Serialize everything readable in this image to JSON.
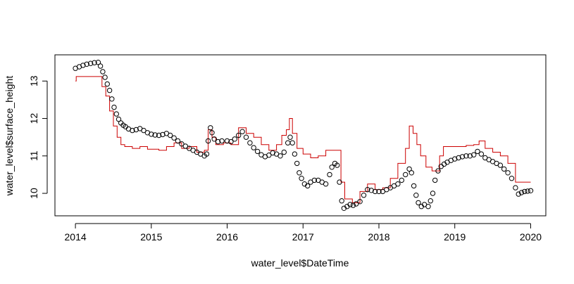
{
  "chart_data": {
    "type": "scatter",
    "title": "",
    "xlabel": "water_level$DateTime",
    "ylabel": "water_level$surface_height",
    "xlim": [
      2013.73,
      2020.2
    ],
    "ylim": [
      9.4,
      13.7
    ],
    "x_ticks": [
      2014,
      2015,
      2016,
      2017,
      2018,
      2019,
      2020
    ],
    "y_ticks": [
      10,
      11,
      12,
      13
    ],
    "grid": false,
    "legend": "none",
    "colors": {
      "points": "#000000",
      "line": "#cc0000",
      "axis": "#000000"
    },
    "series": [
      {
        "type": "scatter",
        "marker": "open-circle",
        "points": [
          [
            2014.0,
            13.34
          ],
          [
            2014.05,
            13.38
          ],
          [
            2014.1,
            13.42
          ],
          [
            2014.15,
            13.45
          ],
          [
            2014.2,
            13.47
          ],
          [
            2014.25,
            13.49
          ],
          [
            2014.3,
            13.5
          ],
          [
            2014.33,
            13.4
          ],
          [
            2014.36,
            13.25
          ],
          [
            2014.39,
            13.1
          ],
          [
            2014.42,
            12.92
          ],
          [
            2014.45,
            12.75
          ],
          [
            2014.48,
            12.52
          ],
          [
            2014.51,
            12.3
          ],
          [
            2014.54,
            12.12
          ],
          [
            2014.57,
            11.98
          ],
          [
            2014.6,
            11.88
          ],
          [
            2014.63,
            11.82
          ],
          [
            2014.66,
            11.78
          ],
          [
            2014.7,
            11.72
          ],
          [
            2014.75,
            11.68
          ],
          [
            2014.8,
            11.7
          ],
          [
            2014.85,
            11.73
          ],
          [
            2014.9,
            11.68
          ],
          [
            2014.95,
            11.62
          ],
          [
            2015.0,
            11.58
          ],
          [
            2015.05,
            11.56
          ],
          [
            2015.1,
            11.55
          ],
          [
            2015.15,
            11.57
          ],
          [
            2015.2,
            11.6
          ],
          [
            2015.25,
            11.55
          ],
          [
            2015.3,
            11.48
          ],
          [
            2015.35,
            11.4
          ],
          [
            2015.4,
            11.32
          ],
          [
            2015.45,
            11.26
          ],
          [
            2015.5,
            11.2
          ],
          [
            2015.55,
            11.15
          ],
          [
            2015.6,
            11.1
          ],
          [
            2015.65,
            11.05
          ],
          [
            2015.7,
            11.0
          ],
          [
            2015.73,
            11.05
          ],
          [
            2015.75,
            11.4
          ],
          [
            2015.78,
            11.75
          ],
          [
            2015.8,
            11.62
          ],
          [
            2015.83,
            11.45
          ],
          [
            2015.88,
            11.38
          ],
          [
            2015.93,
            11.4
          ],
          [
            2016.0,
            11.4
          ],
          [
            2016.05,
            11.38
          ],
          [
            2016.1,
            11.45
          ],
          [
            2016.15,
            11.55
          ],
          [
            2016.2,
            11.65
          ],
          [
            2016.25,
            11.5
          ],
          [
            2016.3,
            11.35
          ],
          [
            2016.35,
            11.22
          ],
          [
            2016.4,
            11.12
          ],
          [
            2016.45,
            11.03
          ],
          [
            2016.5,
            10.98
          ],
          [
            2016.55,
            11.02
          ],
          [
            2016.6,
            11.08
          ],
          [
            2016.65,
            11.05
          ],
          [
            2016.7,
            11.0
          ],
          [
            2016.75,
            11.1
          ],
          [
            2016.8,
            11.35
          ],
          [
            2016.83,
            11.5
          ],
          [
            2016.86,
            11.35
          ],
          [
            2016.89,
            11.05
          ],
          [
            2016.92,
            10.8
          ],
          [
            2016.95,
            10.55
          ],
          [
            2016.98,
            10.4
          ],
          [
            2017.02,
            10.25
          ],
          [
            2017.06,
            10.2
          ],
          [
            2017.1,
            10.3
          ],
          [
            2017.15,
            10.35
          ],
          [
            2017.2,
            10.35
          ],
          [
            2017.25,
            10.3
          ],
          [
            2017.3,
            10.25
          ],
          [
            2017.35,
            10.5
          ],
          [
            2017.38,
            10.7
          ],
          [
            2017.42,
            10.8
          ],
          [
            2017.45,
            10.75
          ],
          [
            2017.48,
            10.3
          ],
          [
            2017.51,
            9.8
          ],
          [
            2017.54,
            9.6
          ],
          [
            2017.58,
            9.65
          ],
          [
            2017.62,
            9.7
          ],
          [
            2017.66,
            9.68
          ],
          [
            2017.7,
            9.72
          ],
          [
            2017.75,
            9.78
          ],
          [
            2017.8,
            9.95
          ],
          [
            2017.85,
            10.1
          ],
          [
            2017.9,
            10.08
          ],
          [
            2017.95,
            10.05
          ],
          [
            2018.0,
            10.05
          ],
          [
            2018.05,
            10.05
          ],
          [
            2018.1,
            10.1
          ],
          [
            2018.15,
            10.15
          ],
          [
            2018.2,
            10.2
          ],
          [
            2018.25,
            10.25
          ],
          [
            2018.3,
            10.35
          ],
          [
            2018.35,
            10.5
          ],
          [
            2018.4,
            10.65
          ],
          [
            2018.43,
            10.55
          ],
          [
            2018.46,
            10.2
          ],
          [
            2018.49,
            9.95
          ],
          [
            2018.52,
            9.75
          ],
          [
            2018.56,
            9.65
          ],
          [
            2018.6,
            9.7
          ],
          [
            2018.65,
            9.65
          ],
          [
            2018.68,
            9.8
          ],
          [
            2018.71,
            10.0
          ],
          [
            2018.74,
            10.35
          ],
          [
            2018.78,
            10.6
          ],
          [
            2018.82,
            10.72
          ],
          [
            2018.86,
            10.78
          ],
          [
            2018.9,
            10.83
          ],
          [
            2018.95,
            10.88
          ],
          [
            2019.0,
            10.92
          ],
          [
            2019.05,
            10.95
          ],
          [
            2019.1,
            10.98
          ],
          [
            2019.15,
            11.0
          ],
          [
            2019.2,
            11.0
          ],
          [
            2019.25,
            11.03
          ],
          [
            2019.3,
            11.12
          ],
          [
            2019.35,
            11.05
          ],
          [
            2019.4,
            10.95
          ],
          [
            2019.45,
            10.9
          ],
          [
            2019.5,
            10.85
          ],
          [
            2019.55,
            10.8
          ],
          [
            2019.6,
            10.75
          ],
          [
            2019.65,
            10.65
          ],
          [
            2019.7,
            10.55
          ],
          [
            2019.75,
            10.4
          ],
          [
            2019.8,
            10.15
          ],
          [
            2019.84,
            9.98
          ],
          [
            2019.88,
            10.02
          ],
          [
            2019.92,
            10.05
          ],
          [
            2019.96,
            10.06
          ],
          [
            2020.0,
            10.07
          ]
        ]
      },
      {
        "type": "step-line",
        "points": [
          [
            2014.0,
            13.0
          ],
          [
            2014.01,
            13.12
          ],
          [
            2014.3,
            13.12
          ],
          [
            2014.35,
            12.85
          ],
          [
            2014.4,
            12.6
          ],
          [
            2014.45,
            12.2
          ],
          [
            2014.5,
            11.8
          ],
          [
            2014.55,
            11.5
          ],
          [
            2014.6,
            11.3
          ],
          [
            2014.65,
            11.25
          ],
          [
            2014.75,
            11.2
          ],
          [
            2014.85,
            11.25
          ],
          [
            2014.95,
            11.18
          ],
          [
            2015.1,
            11.15
          ],
          [
            2015.2,
            11.25
          ],
          [
            2015.3,
            11.35
          ],
          [
            2015.4,
            11.2
          ],
          [
            2015.5,
            11.25
          ],
          [
            2015.6,
            11.1
          ],
          [
            2015.7,
            11.15
          ],
          [
            2015.75,
            11.7
          ],
          [
            2015.8,
            11.5
          ],
          [
            2015.85,
            11.3
          ],
          [
            2015.95,
            11.35
          ],
          [
            2016.05,
            11.3
          ],
          [
            2016.15,
            11.75
          ],
          [
            2016.25,
            11.6
          ],
          [
            2016.35,
            11.5
          ],
          [
            2016.45,
            11.3
          ],
          [
            2016.55,
            11.15
          ],
          [
            2016.65,
            11.3
          ],
          [
            2016.72,
            11.55
          ],
          [
            2016.78,
            11.7
          ],
          [
            2016.82,
            12.0
          ],
          [
            2016.86,
            11.6
          ],
          [
            2016.92,
            11.2
          ],
          [
            2017.0,
            11.05
          ],
          [
            2017.1,
            10.95
          ],
          [
            2017.2,
            11.0
          ],
          [
            2017.3,
            11.15
          ],
          [
            2017.45,
            11.15
          ],
          [
            2017.5,
            10.3
          ],
          [
            2017.55,
            9.85
          ],
          [
            2017.65,
            9.75
          ],
          [
            2017.75,
            10.05
          ],
          [
            2017.85,
            10.25
          ],
          [
            2017.95,
            10.1
          ],
          [
            2018.05,
            10.15
          ],
          [
            2018.15,
            10.4
          ],
          [
            2018.25,
            10.8
          ],
          [
            2018.35,
            11.2
          ],
          [
            2018.4,
            11.8
          ],
          [
            2018.45,
            11.6
          ],
          [
            2018.5,
            11.3
          ],
          [
            2018.55,
            11.0
          ],
          [
            2018.62,
            10.7
          ],
          [
            2018.7,
            10.6
          ],
          [
            2018.8,
            11.0
          ],
          [
            2018.85,
            11.25
          ],
          [
            2018.95,
            11.25
          ],
          [
            2019.05,
            11.25
          ],
          [
            2019.15,
            11.28
          ],
          [
            2019.25,
            11.3
          ],
          [
            2019.32,
            11.4
          ],
          [
            2019.4,
            11.2
          ],
          [
            2019.5,
            11.1
          ],
          [
            2019.6,
            11.0
          ],
          [
            2019.7,
            10.8
          ],
          [
            2019.8,
            10.3
          ],
          [
            2019.9,
            10.3
          ],
          [
            2020.0,
            10.3
          ]
        ]
      }
    ]
  }
}
